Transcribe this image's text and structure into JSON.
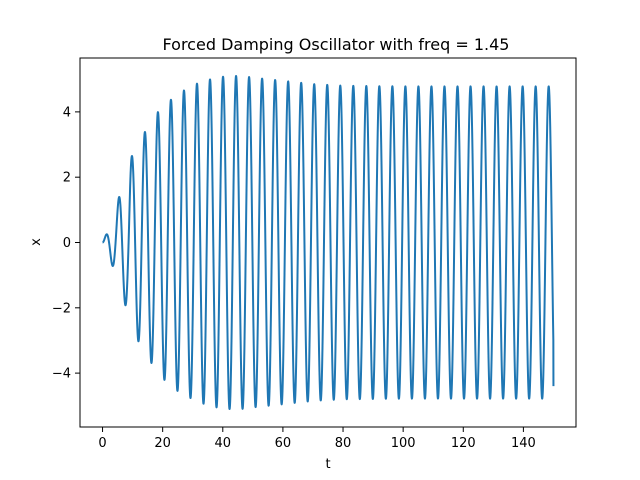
{
  "chart_data": {
    "type": "line",
    "title": "Forced Damping Oscillator with freq = 1.45",
    "xlabel": "t",
    "ylabel": "x",
    "xlim": [
      -7.5,
      157.5
    ],
    "ylim": [
      -5.65,
      5.65
    ],
    "xticks": [
      0,
      20,
      40,
      60,
      80,
      100,
      120,
      140
    ],
    "yticks": [
      -4,
      -2,
      0,
      2,
      4
    ],
    "ytick_labels": [
      "−4",
      "−2",
      "0",
      "2",
      "4"
    ],
    "grid": false,
    "series": [
      {
        "color": "#1f77b4",
        "t_range": [
          0,
          150
        ],
        "forcing_freq": 1.45,
        "amplitude_envelope": [
          [
            0,
            0.0
          ],
          [
            2,
            0.4
          ],
          [
            4.5,
            1.0
          ],
          [
            6,
            1.6
          ],
          [
            8.5,
            2.1
          ],
          [
            9.2,
            2.55
          ],
          [
            11.5,
            2.95
          ],
          [
            13.5,
            3.3
          ],
          [
            16,
            3.65
          ],
          [
            18,
            3.95
          ],
          [
            20.5,
            4.2
          ],
          [
            22.5,
            4.35
          ],
          [
            25,
            4.55
          ],
          [
            28,
            4.7
          ],
          [
            31,
            4.85
          ],
          [
            34,
            4.95
          ],
          [
            38,
            5.05
          ],
          [
            42,
            5.1
          ],
          [
            46,
            5.1
          ],
          [
            50,
            5.05
          ],
          [
            55,
            5.0
          ],
          [
            60,
            4.95
          ],
          [
            65,
            4.9
          ],
          [
            70,
            4.85
          ],
          [
            80,
            4.8
          ],
          [
            100,
            4.78
          ],
          [
            150,
            4.78
          ]
        ],
        "end_value": -4.4
      }
    ]
  }
}
